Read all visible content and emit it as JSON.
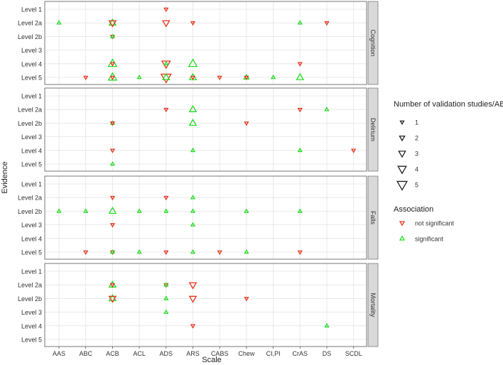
{
  "chart_data": {
    "type": "scatter",
    "facet_layout": "rows",
    "x": {
      "label": "Scale",
      "categories": [
        "AAS",
        "ABC",
        "ACB",
        "ACL",
        "ADS",
        "ARS",
        "CABS",
        "Chew",
        "CI,PI",
        "CrAS",
        "DS",
        "SCDL"
      ]
    },
    "y": {
      "label": "Evidence",
      "categories": [
        "Level 1",
        "Level 2a",
        "Level 2b",
        "Level 3",
        "Level 4",
        "Level 5"
      ]
    },
    "facets": [
      {
        "name": "Cognition",
        "points": [
          {
            "x": "ADS",
            "y": "Level 1",
            "association": "not significant",
            "n": 1
          },
          {
            "x": "AAS",
            "y": "Level 2a",
            "association": "significant",
            "n": 1
          },
          {
            "x": "ACB",
            "y": "Level 2a",
            "association": "significant",
            "n": 3
          },
          {
            "x": "ACB",
            "y": "Level 2a",
            "association": "not significant",
            "n": 3
          },
          {
            "x": "ADS",
            "y": "Level 2a",
            "association": "not significant",
            "n": 3
          },
          {
            "x": "ARS",
            "y": "Level 2a",
            "association": "not significant",
            "n": 1
          },
          {
            "x": "CrAS",
            "y": "Level 2a",
            "association": "significant",
            "n": 1
          },
          {
            "x": "DS",
            "y": "Level 2a",
            "association": "not significant",
            "n": 1
          },
          {
            "x": "ACB",
            "y": "Level 2b",
            "association": "not significant",
            "n": 1
          },
          {
            "x": "ACB",
            "y": "Level 2b",
            "association": "significant",
            "n": 1
          },
          {
            "x": "ACB",
            "y": "Level 4",
            "association": "significant",
            "n": 4
          },
          {
            "x": "ACB",
            "y": "Level 4",
            "association": "not significant",
            "n": 1
          },
          {
            "x": "ADS",
            "y": "Level 4",
            "association": "not significant",
            "n": 4
          },
          {
            "x": "ADS",
            "y": "Level 4",
            "association": "significant",
            "n": 1
          },
          {
            "x": "ARS",
            "y": "Level 4",
            "association": "significant",
            "n": 4
          },
          {
            "x": "CrAS",
            "y": "Level 4",
            "association": "not significant",
            "n": 1
          },
          {
            "x": "ABC",
            "y": "Level 5",
            "association": "not significant",
            "n": 1
          },
          {
            "x": "ACB",
            "y": "Level 5",
            "association": "significant",
            "n": 4
          },
          {
            "x": "ACB",
            "y": "Level 5",
            "association": "not significant",
            "n": 1
          },
          {
            "x": "ACL",
            "y": "Level 5",
            "association": "significant",
            "n": 1
          },
          {
            "x": "ADS",
            "y": "Level 5",
            "association": "not significant",
            "n": 5
          },
          {
            "x": "ADS",
            "y": "Level 5",
            "association": "significant",
            "n": 3
          },
          {
            "x": "ARS",
            "y": "Level 5",
            "association": "significant",
            "n": 3
          },
          {
            "x": "ARS",
            "y": "Level 5",
            "association": "not significant",
            "n": 1
          },
          {
            "x": "CABS",
            "y": "Level 5",
            "association": "not significant",
            "n": 1
          },
          {
            "x": "Chew",
            "y": "Level 5",
            "association": "significant",
            "n": 2
          },
          {
            "x": "Chew",
            "y": "Level 5",
            "association": "not significant",
            "n": 1
          },
          {
            "x": "CI,PI",
            "y": "Level 5",
            "association": "significant",
            "n": 1
          },
          {
            "x": "CrAS",
            "y": "Level 5",
            "association": "significant",
            "n": 3
          }
        ]
      },
      {
        "name": "Delirium",
        "points": [
          {
            "x": "ADS",
            "y": "Level 2a",
            "association": "not significant",
            "n": 1
          },
          {
            "x": "ARS",
            "y": "Level 2a",
            "association": "significant",
            "n": 3
          },
          {
            "x": "CrAS",
            "y": "Level 2a",
            "association": "not significant",
            "n": 1
          },
          {
            "x": "DS",
            "y": "Level 2a",
            "association": "significant",
            "n": 1
          },
          {
            "x": "ACB",
            "y": "Level 2b",
            "association": "significant",
            "n": 1
          },
          {
            "x": "ACB",
            "y": "Level 2b",
            "association": "not significant",
            "n": 1
          },
          {
            "x": "ARS",
            "y": "Level 2b",
            "association": "significant",
            "n": 3
          },
          {
            "x": "Chew",
            "y": "Level 2b",
            "association": "not significant",
            "n": 1
          },
          {
            "x": "ACB",
            "y": "Level 4",
            "association": "not significant",
            "n": 1
          },
          {
            "x": "ARS",
            "y": "Level 4",
            "association": "significant",
            "n": 1
          },
          {
            "x": "CrAS",
            "y": "Level 4",
            "association": "significant",
            "n": 1
          },
          {
            "x": "SCDL",
            "y": "Level 4",
            "association": "not significant",
            "n": 1
          },
          {
            "x": "ACB",
            "y": "Level 5",
            "association": "significant",
            "n": 1
          }
        ]
      },
      {
        "name": "Falls",
        "points": [
          {
            "x": "ACB",
            "y": "Level 2a",
            "association": "not significant",
            "n": 1
          },
          {
            "x": "ADS",
            "y": "Level 2a",
            "association": "not significant",
            "n": 1
          },
          {
            "x": "ARS",
            "y": "Level 2a",
            "association": "significant",
            "n": 1
          },
          {
            "x": "AAS",
            "y": "Level 2b",
            "association": "significant",
            "n": 1
          },
          {
            "x": "ABC",
            "y": "Level 2b",
            "association": "significant",
            "n": 1
          },
          {
            "x": "ACB",
            "y": "Level 2b",
            "association": "significant",
            "n": 3
          },
          {
            "x": "ACL",
            "y": "Level 2b",
            "association": "significant",
            "n": 1
          },
          {
            "x": "ADS",
            "y": "Level 2b",
            "association": "significant",
            "n": 1
          },
          {
            "x": "ARS",
            "y": "Level 2b",
            "association": "significant",
            "n": 1
          },
          {
            "x": "Chew",
            "y": "Level 2b",
            "association": "significant",
            "n": 1
          },
          {
            "x": "CrAS",
            "y": "Level 2b",
            "association": "significant",
            "n": 1
          },
          {
            "x": "ACB",
            "y": "Level 3",
            "association": "not significant",
            "n": 1
          },
          {
            "x": "ARS",
            "y": "Level 3",
            "association": "significant",
            "n": 1
          },
          {
            "x": "ABC",
            "y": "Level 5",
            "association": "not significant",
            "n": 1
          },
          {
            "x": "ACB",
            "y": "Level 5",
            "association": "not significant",
            "n": 1
          },
          {
            "x": "ACB",
            "y": "Level 5",
            "association": "significant",
            "n": 1
          },
          {
            "x": "ACL",
            "y": "Level 5",
            "association": "significant",
            "n": 1
          },
          {
            "x": "ADS",
            "y": "Level 5",
            "association": "not significant",
            "n": 1
          },
          {
            "x": "ARS",
            "y": "Level 5",
            "association": "significant",
            "n": 1
          },
          {
            "x": "CABS",
            "y": "Level 5",
            "association": "not significant",
            "n": 1
          },
          {
            "x": "Chew",
            "y": "Level 5",
            "association": "significant",
            "n": 1
          },
          {
            "x": "CrAS",
            "y": "Level 5",
            "association": "not significant",
            "n": 1
          }
        ]
      },
      {
        "name": "Mortality",
        "points": [
          {
            "x": "ACB",
            "y": "Level 2a",
            "association": "significant",
            "n": 3
          },
          {
            "x": "ACB",
            "y": "Level 2a",
            "association": "not significant",
            "n": 1
          },
          {
            "x": "ADS",
            "y": "Level 2a",
            "association": "not significant",
            "n": 1
          },
          {
            "x": "ADS",
            "y": "Level 2a",
            "association": "significant",
            "n": 1
          },
          {
            "x": "ARS",
            "y": "Level 2a",
            "association": "not significant",
            "n": 3
          },
          {
            "x": "ACB",
            "y": "Level 2b",
            "association": "significant",
            "n": 3
          },
          {
            "x": "ACB",
            "y": "Level 2b",
            "association": "not significant",
            "n": 3
          },
          {
            "x": "ADS",
            "y": "Level 2b",
            "association": "significant",
            "n": 1
          },
          {
            "x": "ARS",
            "y": "Level 2b",
            "association": "not significant",
            "n": 3
          },
          {
            "x": "Chew",
            "y": "Level 2b",
            "association": "not significant",
            "n": 1
          },
          {
            "x": "ADS",
            "y": "Level 3",
            "association": "significant",
            "n": 1
          },
          {
            "x": "ARS",
            "y": "Level 4",
            "association": "not significant",
            "n": 1
          },
          {
            "x": "DS",
            "y": "Level 4",
            "association": "significant",
            "n": 1
          }
        ]
      }
    ],
    "legend": {
      "placement": "right",
      "size_title": "Number of validation studies/ABS",
      "size_levels": [
        "1",
        "2",
        "3",
        "4",
        "5"
      ],
      "color_title": "Association",
      "color_levels": [
        {
          "label": "not significant",
          "color": "#e8341c",
          "shape": "triangle-down"
        },
        {
          "label": "significant",
          "color": "#22dd22",
          "shape": "triangle-up"
        }
      ]
    },
    "grid": true,
    "colors": {
      "panel_background": "#ffffff",
      "panel_border": "#555555",
      "gridline": "#e4e4e4",
      "strip_background": "#d9d9d9",
      "text": "#333333",
      "axis_title": "#222222"
    }
  }
}
